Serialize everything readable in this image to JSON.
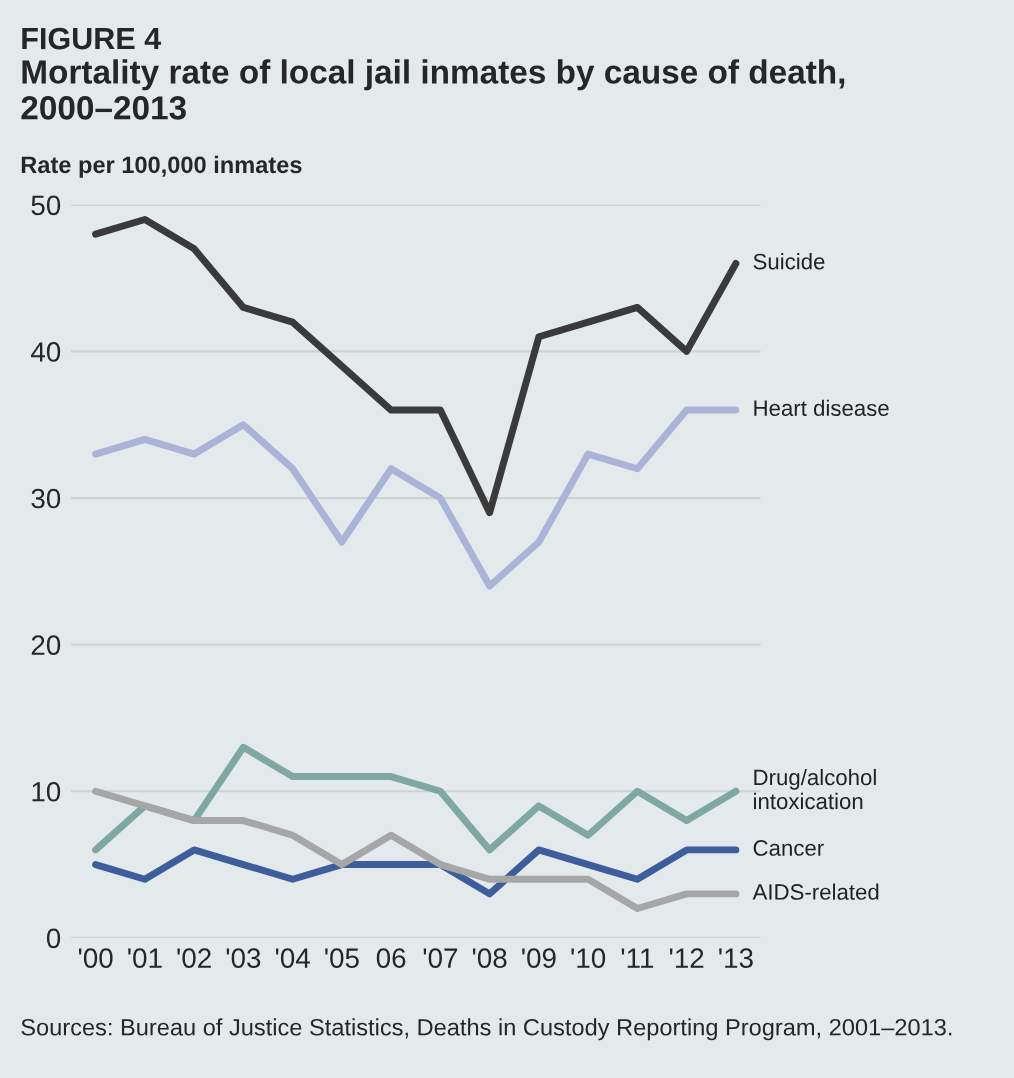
{
  "chart_data": {
    "type": "line",
    "title": "FIGURE 4",
    "subtitle": "Mortality rate of local jail inmates by cause of death, 2000–2013",
    "ylabel": "Rate per 100,000 inmates",
    "categories": [
      "'00",
      "'01",
      "'02",
      "'03",
      "'04",
      "'05",
      "06",
      "'07",
      "'08",
      "'09",
      "'10",
      "'11",
      "'12",
      "'13"
    ],
    "series": [
      {
        "name": "Suicide",
        "color": "#3a3a3a",
        "values": [
          48,
          49,
          47,
          43,
          42,
          39,
          36,
          36,
          29,
          41,
          42,
          43,
          40,
          46
        ]
      },
      {
        "name": "Heart disease",
        "color": "#a9b4d8",
        "values": [
          33,
          34,
          33,
          35,
          32,
          27,
          32,
          30,
          24,
          27,
          33,
          32,
          36,
          36
        ]
      },
      {
        "name": "Drug/alcohol\nintoxication",
        "color": "#7fa8a0",
        "values": [
          6,
          9,
          8,
          13,
          11,
          11,
          11,
          10,
          6,
          9,
          7,
          10,
          8,
          10
        ]
      },
      {
        "name": "Cancer",
        "color": "#3d5d9c",
        "values": [
          5,
          4,
          6,
          5,
          4,
          5,
          5,
          5,
          3,
          6,
          5,
          4,
          6,
          6
        ]
      },
      {
        "name": "AIDS-related",
        "color": "#a6a6a6",
        "values": [
          10,
          9,
          8,
          8,
          7,
          5,
          7,
          5,
          4,
          4,
          4,
          2,
          3,
          3
        ]
      }
    ],
    "ylim": [
      0,
      50
    ],
    "yticks": [
      0,
      10,
      20,
      30,
      40,
      50
    ],
    "grid": "y",
    "legend": false,
    "marker": "none",
    "line_style": "solid",
    "annotations": [
      "Sources: Bureau of Justice Statistics, Deaths in Custody Reporting Program, 2001–2013."
    ]
  }
}
